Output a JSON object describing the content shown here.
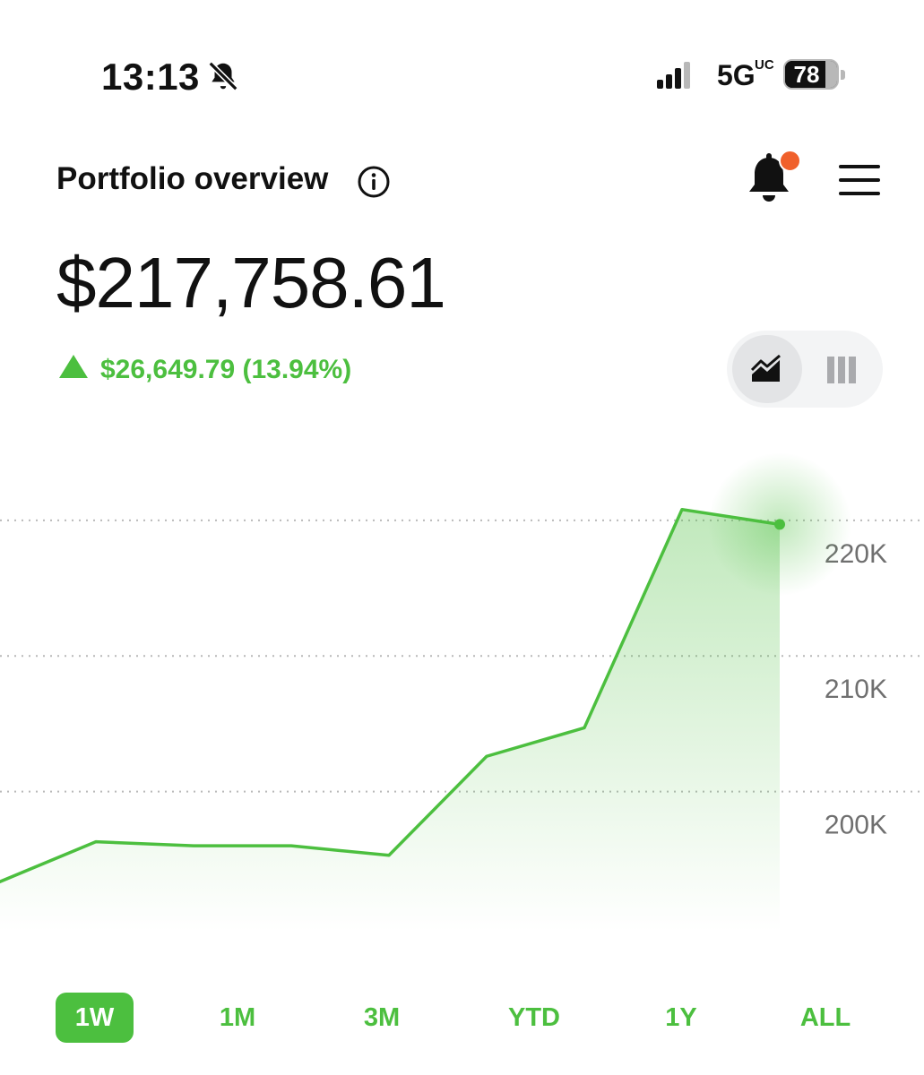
{
  "status_bar": {
    "time": "13:13",
    "network": "5G",
    "network_suffix": "UC",
    "battery": "78",
    "icons": [
      "bell-slash-icon",
      "signal-icon",
      "battery-icon"
    ]
  },
  "header": {
    "title": "Portfolio overview",
    "icons": [
      "info-icon",
      "bell-icon",
      "menu-icon"
    ],
    "notification_dot_color": "#f0602b"
  },
  "portfolio": {
    "balance": "$217,758.61",
    "change": "$26,649.79 (13.94%)",
    "change_direction": "up",
    "positive_color": "#4cbf3f"
  },
  "view_toggle": {
    "options": [
      "line-chart-icon",
      "bar-chart-icon"
    ],
    "selected": "line-chart-icon"
  },
  "chart_data": {
    "type": "area",
    "title": "",
    "xlabel": "",
    "ylabel": "",
    "x": [
      1,
      2,
      3,
      4,
      5,
      6,
      7,
      8,
      9
    ],
    "y": [
      193300,
      196300,
      196000,
      196000,
      195300,
      202600,
      204700,
      220800,
      219700
    ],
    "ylim": [
      190000,
      222300
    ],
    "y_ticks": [
      200000,
      210000,
      220000
    ],
    "y_tick_labels": [
      "200K",
      "210K",
      "220K"
    ],
    "grid": "dotted horizontal at y ticks",
    "y_axis_position": "right",
    "line_color": "#4cbf3f",
    "highlight_last_point": true
  },
  "time_ranges": {
    "options": [
      "1W",
      "1M",
      "3M",
      "YTD",
      "1Y",
      "ALL"
    ],
    "selected": "1W"
  }
}
